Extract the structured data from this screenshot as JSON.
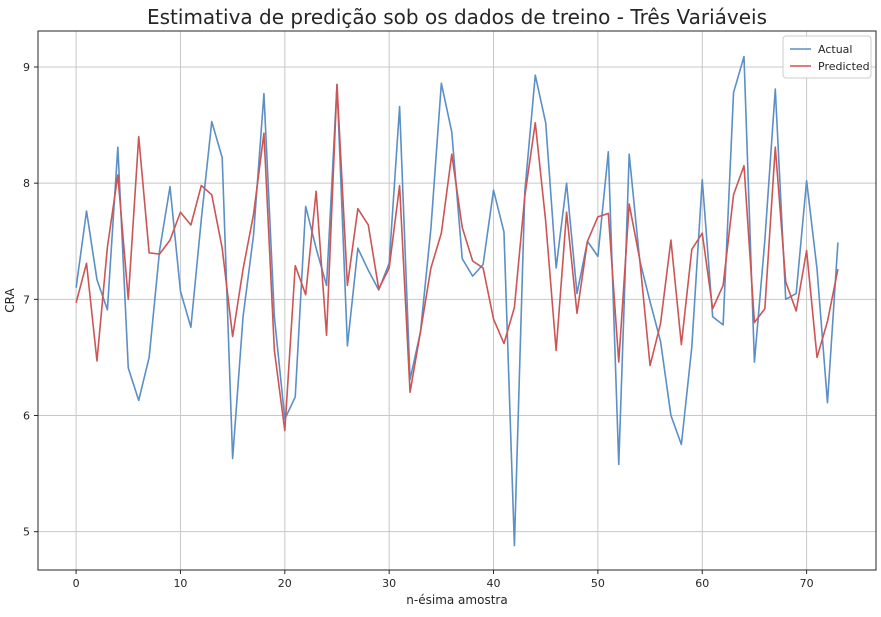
{
  "chart_data": {
    "type": "line",
    "title": "Estimativa de predição sob os dados de treino - Três Variáveis",
    "xlabel": "n-ésima amostra",
    "ylabel": "CRA",
    "xlim": [
      -3.65,
      76.65
    ],
    "ylim": [
      4.67,
      9.31
    ],
    "x_ticks": [
      0,
      10,
      20,
      30,
      40,
      50,
      60,
      70
    ],
    "y_ticks": [
      5,
      6,
      7,
      8,
      9
    ],
    "grid": true,
    "legend_position": "top-right",
    "x": [
      0,
      1,
      2,
      3,
      4,
      5,
      6,
      7,
      8,
      9,
      10,
      11,
      12,
      13,
      14,
      15,
      16,
      17,
      18,
      19,
      20,
      21,
      22,
      23,
      24,
      25,
      26,
      27,
      28,
      29,
      30,
      31,
      32,
      33,
      34,
      35,
      36,
      37,
      38,
      39,
      40,
      41,
      42,
      43,
      44,
      45,
      46,
      47,
      48,
      49,
      50,
      51,
      52,
      53,
      54,
      55,
      56,
      57,
      58,
      59,
      60,
      61,
      62,
      63,
      64,
      65,
      66,
      67,
      68,
      69,
      70,
      71,
      72,
      73
    ],
    "series": [
      {
        "name": "Actual",
        "color": "#5b8fc5",
        "values": [
          7.1,
          7.76,
          7.17,
          6.91,
          8.31,
          6.41,
          6.13,
          6.5,
          7.42,
          7.97,
          7.07,
          6.76,
          7.69,
          8.53,
          8.22,
          5.63,
          6.85,
          7.55,
          8.77,
          6.85,
          5.97,
          6.16,
          7.8,
          7.44,
          7.12,
          8.85,
          6.6,
          7.44,
          7.25,
          7.08,
          7.31,
          8.66,
          6.31,
          6.72,
          7.61,
          8.86,
          8.44,
          7.35,
          7.2,
          7.3,
          7.94,
          7.58,
          4.88,
          7.93,
          8.93,
          8.52,
          7.27,
          8.0,
          7.05,
          7.5,
          7.37,
          8.27,
          5.58,
          8.25,
          7.34,
          6.98,
          6.64,
          6.0,
          5.75,
          6.59,
          8.03,
          6.85,
          6.78,
          8.78,
          9.09,
          6.46,
          7.51,
          8.81,
          7.0,
          7.05,
          8.02,
          7.26,
          6.11,
          7.49
        ]
      },
      {
        "name": "Predicted",
        "color": "#cc5555",
        "values": [
          6.97,
          7.31,
          6.47,
          7.45,
          8.07,
          7.0,
          8.4,
          7.4,
          7.39,
          7.51,
          7.75,
          7.64,
          7.98,
          7.9,
          7.44,
          6.68,
          7.26,
          7.73,
          8.43,
          6.56,
          5.87,
          7.29,
          7.04,
          7.93,
          6.69,
          8.85,
          7.12,
          7.78,
          7.64,
          7.09,
          7.27,
          7.98,
          6.2,
          6.72,
          7.27,
          7.57,
          8.25,
          7.62,
          7.33,
          7.27,
          6.83,
          6.62,
          6.93,
          7.89,
          8.52,
          7.67,
          6.56,
          7.75,
          6.88,
          7.5,
          7.71,
          7.74,
          6.46,
          7.82,
          7.35,
          6.43,
          6.79,
          7.51,
          6.61,
          7.43,
          7.57,
          6.92,
          7.12,
          7.9,
          8.15,
          6.8,
          6.92,
          8.31,
          7.15,
          6.9,
          7.42,
          6.5,
          6.81,
          7.26
        ]
      }
    ]
  }
}
